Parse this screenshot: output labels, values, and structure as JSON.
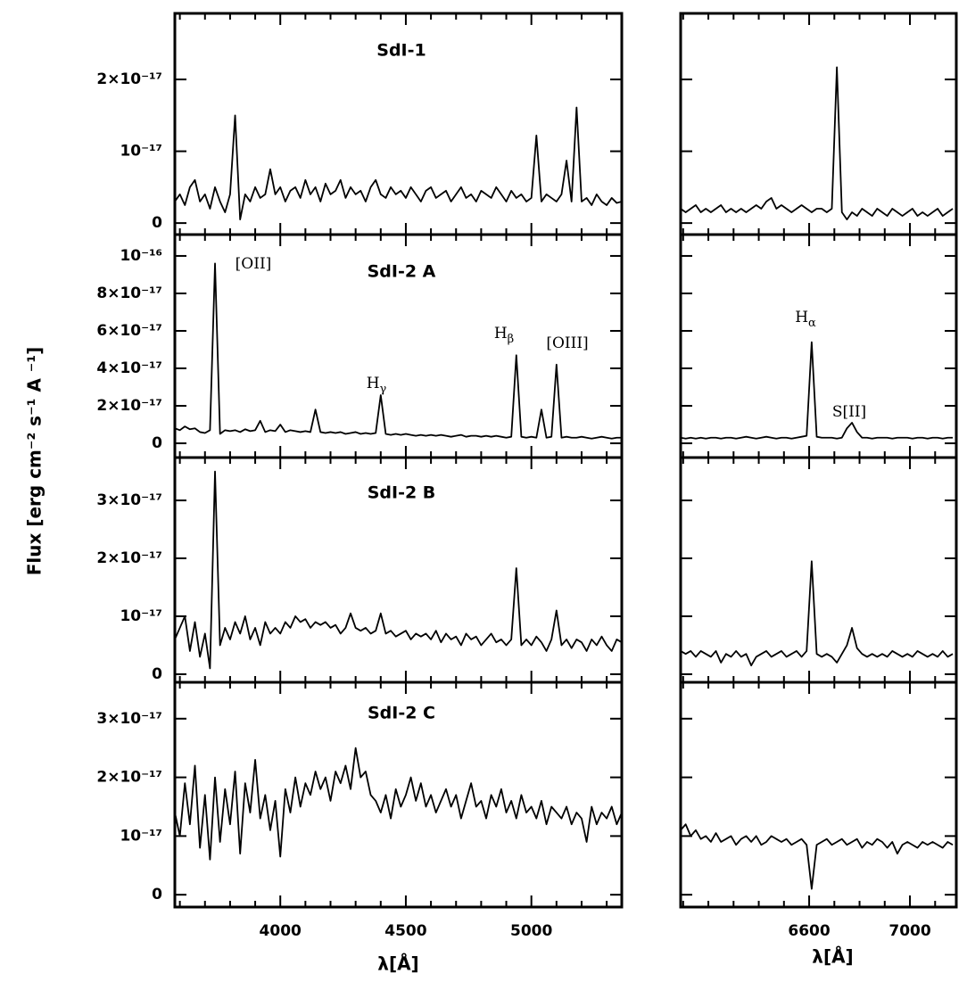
{
  "ylabel": "Flux [erg cm⁻² s⁻¹ A ⁻¹]",
  "chart_data": [
    {
      "type": "line",
      "color": "#000000",
      "xlabel": "λ[Å]",
      "xlim": [
        3580,
        5360
      ],
      "xticks": [
        4000,
        4500,
        5000
      ],
      "xminor": [
        3600,
        3700,
        3800,
        3900,
        4100,
        4200,
        4300,
        4400,
        4600,
        4700,
        4800,
        4900,
        5100,
        5200,
        5300
      ],
      "ytick_labels": true,
      "x": [
        3580,
        3600,
        3620,
        3640,
        3660,
        3680,
        3700,
        3720,
        3740,
        3760,
        3780,
        3800,
        3820,
        3840,
        3860,
        3880,
        3900,
        3920,
        3940,
        3960,
        3980,
        4000,
        4020,
        4040,
        4060,
        4080,
        4100,
        4120,
        4140,
        4160,
        4180,
        4200,
        4220,
        4240,
        4260,
        4280,
        4300,
        4320,
        4340,
        4360,
        4380,
        4400,
        4420,
        4440,
        4460,
        4480,
        4500,
        4520,
        4540,
        4560,
        4580,
        4600,
        4620,
        4640,
        4660,
        4680,
        4700,
        4720,
        4740,
        4760,
        4780,
        4800,
        4820,
        4840,
        4860,
        4880,
        4900,
        4920,
        4940,
        4960,
        4980,
        5000,
        5020,
        5040,
        5060,
        5080,
        5100,
        5120,
        5140,
        5160,
        5180,
        5200,
        5220,
        5240,
        5260,
        5280,
        5300,
        5320,
        5340,
        5360
      ],
      "panels": [
        {
          "title": "SdI-1",
          "ylim": [
            -1.6e-18,
            2.92e-17
          ],
          "yticks": [
            0,
            {
              "value": 1e-17,
              "label": "10⁻¹⁷"
            },
            {
              "value": 2e-17,
              "label": "2×10⁻¹⁷"
            }
          ],
          "annotations": [],
          "values": [
            3e-18,
            4e-18,
            2.5e-18,
            5e-18,
            6e-18,
            3e-18,
            4e-18,
            2e-18,
            5e-18,
            3e-18,
            1.5e-18,
            4e-18,
            1.5e-17,
            5e-19,
            4e-18,
            3e-18,
            5e-18,
            3.5e-18,
            4e-18,
            7.5e-18,
            4e-18,
            5e-18,
            3e-18,
            4.5e-18,
            5e-18,
            3.5e-18,
            6e-18,
            4e-18,
            5e-18,
            3e-18,
            5.5e-18,
            4e-18,
            4.5e-18,
            6e-18,
            3.5e-18,
            5e-18,
            4e-18,
            4.5e-18,
            3e-18,
            5e-18,
            6e-18,
            4e-18,
            3.5e-18,
            5e-18,
            4e-18,
            4.5e-18,
            3.5e-18,
            5e-18,
            4e-18,
            3e-18,
            4.5e-18,
            5e-18,
            3.5e-18,
            4e-18,
            4.5e-18,
            3e-18,
            4e-18,
            5e-18,
            3.5e-18,
            4e-18,
            3e-18,
            4.5e-18,
            4e-18,
            3.5e-18,
            5e-18,
            4e-18,
            3e-18,
            4.5e-18,
            3.5e-18,
            4e-18,
            3e-18,
            3.5e-18,
            1.22e-17,
            3e-18,
            4e-18,
            3.5e-18,
            3e-18,
            4e-18,
            8.7e-18,
            3e-18,
            1.61e-17,
            3e-18,
            3.5e-18,
            2.5e-18,
            4e-18,
            3e-18,
            2.5e-18,
            3.5e-18,
            2.8e-18,
            3e-18
          ]
        },
        {
          "title": "SdI-2 A",
          "ylim": [
            -7.6e-18,
            1.114e-16
          ],
          "yticks": [
            0,
            {
              "value": 2e-17,
              "label": "2×10⁻¹⁷"
            },
            {
              "value": 4e-17,
              "label": "4×10⁻¹⁷"
            },
            {
              "value": 6e-17,
              "label": "6×10⁻¹⁷"
            },
            {
              "value": 8e-17,
              "label": "8×10⁻¹⁷"
            },
            {
              "value": 1e-16,
              "label": "10⁻¹⁶"
            }
          ],
          "annotations": [
            {
              "text": "[OII]"
            },
            {
              "text": "H",
              "sub": "γ"
            },
            {
              "text": "H",
              "sub": "β"
            },
            {
              "text": "[OIII]"
            }
          ],
          "values": [
            8e-18,
            7e-18,
            9e-18,
            7.5e-18,
            8e-18,
            6e-18,
            5.5e-18,
            7e-18,
            9.6e-17,
            5e-18,
            7e-18,
            6.5e-18,
            7e-18,
            6e-18,
            7.5e-18,
            6.5e-18,
            7e-18,
            1.2e-17,
            6e-18,
            7e-18,
            6.5e-18,
            1e-17,
            6e-18,
            7e-18,
            6.5e-18,
            6e-18,
            6.5e-18,
            6e-18,
            1.8e-17,
            6e-18,
            5.5e-18,
            6e-18,
            5.5e-18,
            6e-18,
            5e-18,
            5.5e-18,
            6e-18,
            5e-18,
            5.5e-18,
            5e-18,
            5.5e-18,
            2.57e-17,
            5e-18,
            4.5e-18,
            5e-18,
            4.5e-18,
            5e-18,
            4.5e-18,
            4e-18,
            4.5e-18,
            4e-18,
            4.5e-18,
            4e-18,
            4.5e-18,
            4e-18,
            3.5e-18,
            4e-18,
            4.5e-18,
            3.5e-18,
            4e-18,
            4e-18,
            3.5e-18,
            4e-18,
            3.5e-18,
            4e-18,
            3.5e-18,
            3e-18,
            3.5e-18,
            4.7e-17,
            3.5e-18,
            3e-18,
            3.5e-18,
            3e-18,
            1.8e-17,
            3e-18,
            3.5e-18,
            4.2e-17,
            3e-18,
            3.5e-18,
            3e-18,
            3e-18,
            3.5e-18,
            3e-18,
            2.5e-18,
            3e-18,
            3.5e-18,
            3e-18,
            2.5e-18,
            3e-18,
            3e-18
          ]
        },
        {
          "title": "SdI-2 B",
          "ylim": [
            -1.4e-18,
            3.74e-17
          ],
          "yticks": [
            0,
            {
              "value": 1e-17,
              "label": "10⁻¹⁷"
            },
            {
              "value": 2e-17,
              "label": "2×10⁻¹⁷"
            },
            {
              "value": 3e-17,
              "label": "3×10⁻¹⁷"
            }
          ],
          "annotations": [],
          "values": [
            6e-18,
            8e-18,
            1e-17,
            4e-18,
            9e-18,
            3e-18,
            7e-18,
            1e-18,
            3.5e-17,
            5e-18,
            8e-18,
            6e-18,
            9e-18,
            7e-18,
            1e-17,
            6e-18,
            8e-18,
            5e-18,
            9e-18,
            7e-18,
            8e-18,
            7e-18,
            9e-18,
            8e-18,
            1e-17,
            9e-18,
            9.5e-18,
            8e-18,
            9e-18,
            8.5e-18,
            9e-18,
            8e-18,
            8.5e-18,
            7e-18,
            8e-18,
            1.05e-17,
            8e-18,
            7.5e-18,
            8e-18,
            7e-18,
            7.5e-18,
            1.05e-17,
            7e-18,
            7.5e-18,
            6.5e-18,
            7e-18,
            7.5e-18,
            6e-18,
            7e-18,
            6.5e-18,
            7e-18,
            6e-18,
            7.5e-18,
            5.5e-18,
            7e-18,
            6e-18,
            6.5e-18,
            5e-18,
            7e-18,
            6e-18,
            6.5e-18,
            5e-18,
            6e-18,
            7e-18,
            5.5e-18,
            6e-18,
            5e-18,
            6e-18,
            1.83e-17,
            5e-18,
            6e-18,
            5e-18,
            6.5e-18,
            5.5e-18,
            4e-18,
            6e-18,
            1.1e-17,
            5e-18,
            6e-18,
            4.5e-18,
            6e-18,
            5.5e-18,
            4e-18,
            6e-18,
            5e-18,
            6.5e-18,
            5e-18,
            4e-18,
            6e-18,
            5.5e-18
          ]
        },
        {
          "title": "SdI-2 C",
          "ylim": [
            -2.1e-18,
            3.62e-17
          ],
          "yticks": [
            0,
            {
              "value": 1e-17,
              "label": "10⁻¹⁷"
            },
            {
              "value": 2e-17,
              "label": "2×10⁻¹⁷"
            },
            {
              "value": 3e-17,
              "label": "3×10⁻¹⁷"
            }
          ],
          "annotations": [],
          "values": [
            1.4e-17,
            1e-17,
            1.9e-17,
            1.2e-17,
            2.2e-17,
            8e-18,
            1.7e-17,
            6e-18,
            2e-17,
            9e-18,
            1.8e-17,
            1.2e-17,
            2.1e-17,
            7e-18,
            1.9e-17,
            1.4e-17,
            2.3e-17,
            1.3e-17,
            1.7e-17,
            1.1e-17,
            1.6e-17,
            6.5e-18,
            1.8e-17,
            1.4e-17,
            2e-17,
            1.5e-17,
            1.9e-17,
            1.7e-17,
            2.1e-17,
            1.8e-17,
            2e-17,
            1.6e-17,
            2.1e-17,
            1.9e-17,
            2.2e-17,
            1.8e-17,
            2.5e-17,
            2e-17,
            2.1e-17,
            1.7e-17,
            1.6e-17,
            1.4e-17,
            1.7e-17,
            1.3e-17,
            1.8e-17,
            1.5e-17,
            1.7e-17,
            2e-17,
            1.6e-17,
            1.9e-17,
            1.5e-17,
            1.7e-17,
            1.4e-17,
            1.6e-17,
            1.8e-17,
            1.5e-17,
            1.7e-17,
            1.3e-17,
            1.6e-17,
            1.9e-17,
            1.5e-17,
            1.6e-17,
            1.3e-17,
            1.7e-17,
            1.5e-17,
            1.8e-17,
            1.4e-17,
            1.6e-17,
            1.3e-17,
            1.7e-17,
            1.4e-17,
            1.5e-17,
            1.3e-17,
            1.6e-17,
            1.2e-17,
            1.5e-17,
            1.4e-17,
            1.3e-17,
            1.5e-17,
            1.2e-17,
            1.4e-17,
            1.3e-17,
            9e-18,
            1.5e-17,
            1.2e-17,
            1.4e-17,
            1.3e-17,
            1.5e-17,
            1.2e-17,
            1.4e-17
          ]
        }
      ]
    },
    {
      "type": "line",
      "color": "#000000",
      "xlabel": "λ[Å]",
      "xlim": [
        6090,
        7184
      ],
      "xticks": [
        6600,
        7000
      ],
      "xminor": [
        6100,
        6200,
        6300,
        6400,
        6500,
        6700,
        6800,
        6900,
        7100
      ],
      "ytick_labels": false,
      "x": [
        6090,
        6110,
        6130,
        6150,
        6170,
        6190,
        6210,
        6230,
        6250,
        6270,
        6290,
        6310,
        6330,
        6350,
        6370,
        6390,
        6410,
        6430,
        6450,
        6470,
        6490,
        6510,
        6530,
        6550,
        6570,
        6590,
        6610,
        6630,
        6650,
        6670,
        6690,
        6710,
        6730,
        6750,
        6770,
        6790,
        6810,
        6830,
        6850,
        6870,
        6890,
        6910,
        6930,
        6950,
        6970,
        6990,
        7010,
        7030,
        7050,
        7070,
        7090,
        7110,
        7130,
        7150,
        7170
      ],
      "panels": [
        {
          "ylim": [
            -1.6e-18,
            2.92e-17
          ],
          "yticks": [
            0,
            1e-17,
            2e-17
          ],
          "annotations": [],
          "values": [
            2e-18,
            1.5e-18,
            2e-18,
            2.5e-18,
            1.5e-18,
            2e-18,
            1.5e-18,
            2e-18,
            2.5e-18,
            1.5e-18,
            2e-18,
            1.5e-18,
            2e-18,
            1.5e-18,
            2e-18,
            2.5e-18,
            2e-18,
            3e-18,
            3.5e-18,
            2e-18,
            2.5e-18,
            2e-18,
            1.5e-18,
            2e-18,
            2.5e-18,
            2e-18,
            1.5e-18,
            2e-18,
            2e-18,
            1.5e-18,
            2e-18,
            2.17e-17,
            1.5e-18,
            5e-19,
            1.5e-18,
            1e-18,
            2e-18,
            1.5e-18,
            1e-18,
            2e-18,
            1.5e-18,
            1e-18,
            2e-18,
            1.5e-18,
            1e-18,
            1.5e-18,
            2e-18,
            1e-18,
            1.5e-18,
            1e-18,
            1.5e-18,
            2e-18,
            1e-18,
            1.5e-18,
            2e-18
          ]
        },
        {
          "ylim": [
            -7.6e-18,
            1.114e-16
          ],
          "yticks": [
            0,
            2e-17,
            4e-17,
            6e-17,
            8e-17,
            1e-16
          ],
          "annotations": [
            {
              "text": "H",
              "sub": "α"
            },
            {
              "text": "S[II]"
            }
          ],
          "values": [
            3e-18,
            2.5e-18,
            3e-18,
            2.5e-18,
            3e-18,
            2.5e-18,
            3e-18,
            3e-18,
            2.5e-18,
            3e-18,
            3e-18,
            2.5e-18,
            3e-18,
            3.5e-18,
            3e-18,
            2.5e-18,
            3e-18,
            3.5e-18,
            3e-18,
            2.5e-18,
            3e-18,
            3e-18,
            2.5e-18,
            3e-18,
            3.5e-18,
            4e-18,
            5.4e-17,
            3.5e-18,
            3e-18,
            3e-18,
            3e-18,
            2.5e-18,
            3e-18,
            8e-18,
            1.1e-17,
            6e-18,
            3e-18,
            3e-18,
            2.5e-18,
            3e-18,
            3e-18,
            3e-18,
            2.5e-18,
            3e-18,
            3e-18,
            3e-18,
            2.5e-18,
            3e-18,
            3e-18,
            2.5e-18,
            3e-18,
            3e-18,
            2.5e-18,
            3e-18,
            3e-18
          ]
        },
        {
          "ylim": [
            -1.4e-18,
            3.74e-17
          ],
          "yticks": [
            0,
            1e-17,
            2e-17,
            3e-17
          ],
          "annotations": [],
          "values": [
            4e-18,
            3.5e-18,
            4e-18,
            3e-18,
            4e-18,
            3.5e-18,
            3e-18,
            4e-18,
            2e-18,
            3.5e-18,
            3e-18,
            4e-18,
            3e-18,
            3.5e-18,
            1.5e-18,
            3e-18,
            3.5e-18,
            4e-18,
            3e-18,
            3.5e-18,
            4e-18,
            3e-18,
            3.5e-18,
            4e-18,
            3e-18,
            4e-18,
            1.95e-17,
            3.5e-18,
            3e-18,
            3.5e-18,
            3e-18,
            2e-18,
            3.5e-18,
            5e-18,
            8e-18,
            4.5e-18,
            3.5e-18,
            3e-18,
            3.5e-18,
            3e-18,
            3.5e-18,
            3e-18,
            4e-18,
            3.5e-18,
            3e-18,
            3.5e-18,
            3e-18,
            4e-18,
            3.5e-18,
            3e-18,
            3.5e-18,
            3e-18,
            4e-18,
            3e-18,
            3.5e-18
          ]
        },
        {
          "ylim": [
            -2.1e-18,
            3.62e-17
          ],
          "yticks": [
            0,
            1e-17,
            2e-17,
            3e-17
          ],
          "annotations": [],
          "values": [
            1.1e-17,
            1.2e-17,
            1e-17,
            1.1e-17,
            9.5e-18,
            1e-17,
            9e-18,
            1.05e-17,
            9e-18,
            9.5e-18,
            1e-17,
            8.5e-18,
            9.5e-18,
            1e-17,
            9e-18,
            1e-17,
            8.5e-18,
            9e-18,
            1e-17,
            9.5e-18,
            9e-18,
            9.5e-18,
            8.5e-18,
            9e-18,
            9.5e-18,
            8.5e-18,
            1e-18,
            8.5e-18,
            9e-18,
            9.5e-18,
            8.5e-18,
            9e-18,
            9.5e-18,
            8.5e-18,
            9e-18,
            9.5e-18,
            8e-18,
            9e-18,
            8.5e-18,
            9.5e-18,
            9e-18,
            8e-18,
            9e-18,
            7e-18,
            8.5e-18,
            9e-18,
            8.5e-18,
            8e-18,
            9e-18,
            8.5e-18,
            9e-18,
            8.5e-18,
            8e-18,
            9e-18,
            8.5e-18
          ]
        }
      ]
    }
  ]
}
